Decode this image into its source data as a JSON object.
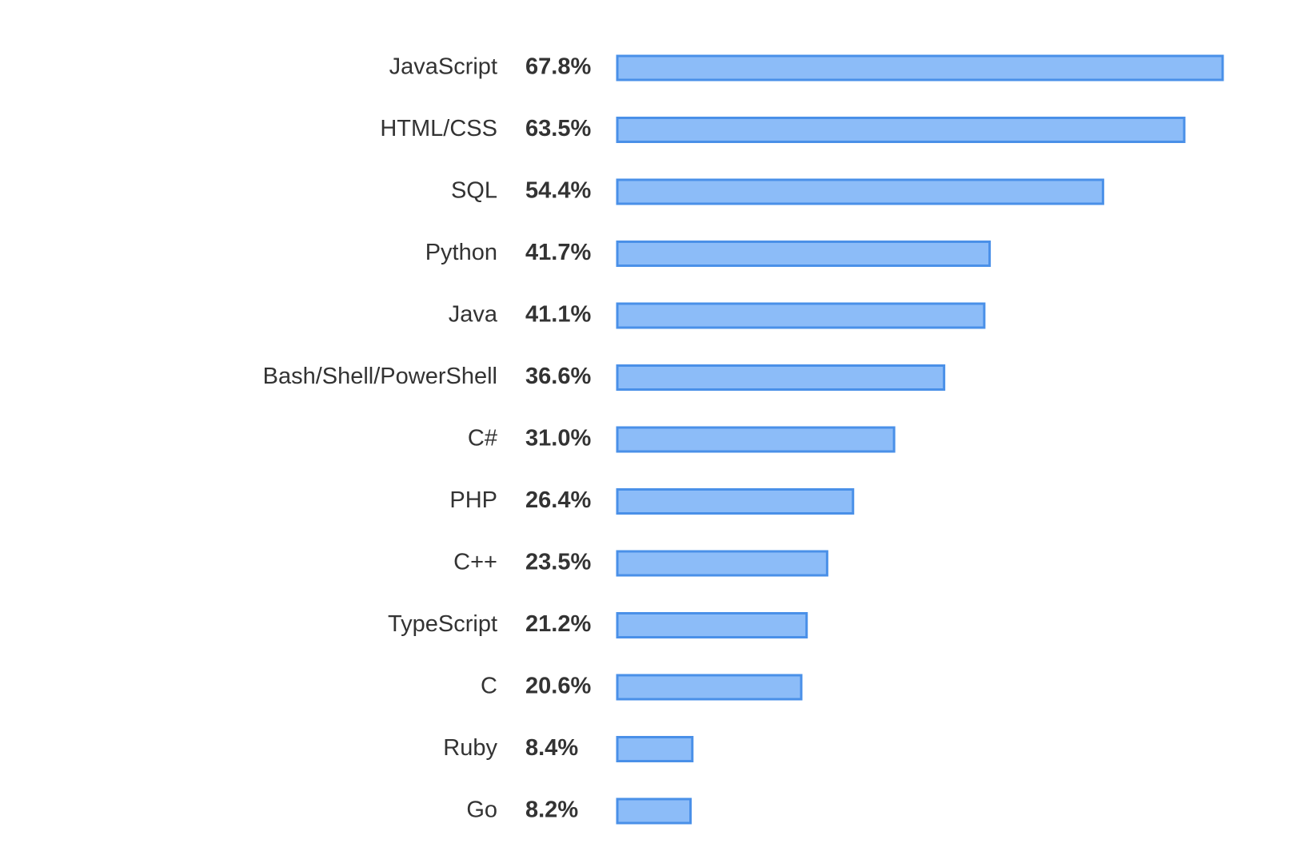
{
  "chart_data": {
    "type": "bar",
    "categories": [
      "JavaScript",
      "HTML/CSS",
      "SQL",
      "Python",
      "Java",
      "Bash/Shell/PowerShell",
      "C#",
      "PHP",
      "C++",
      "TypeScript",
      "C",
      "Ruby",
      "Go"
    ],
    "values": [
      67.8,
      63.5,
      54.4,
      41.7,
      41.1,
      36.6,
      31.0,
      26.4,
      23.5,
      21.2,
      20.6,
      8.4,
      8.2
    ],
    "value_labels": [
      "67.8%",
      "63.5%",
      "54.4%",
      "41.7%",
      "41.1%",
      "36.6%",
      "31.0%",
      "26.4%",
      "23.5%",
      "21.2%",
      "20.6%",
      "8.4%",
      "8.2%"
    ],
    "color": "#8cbcf8",
    "edgecolor": "#4a90e8"
  }
}
